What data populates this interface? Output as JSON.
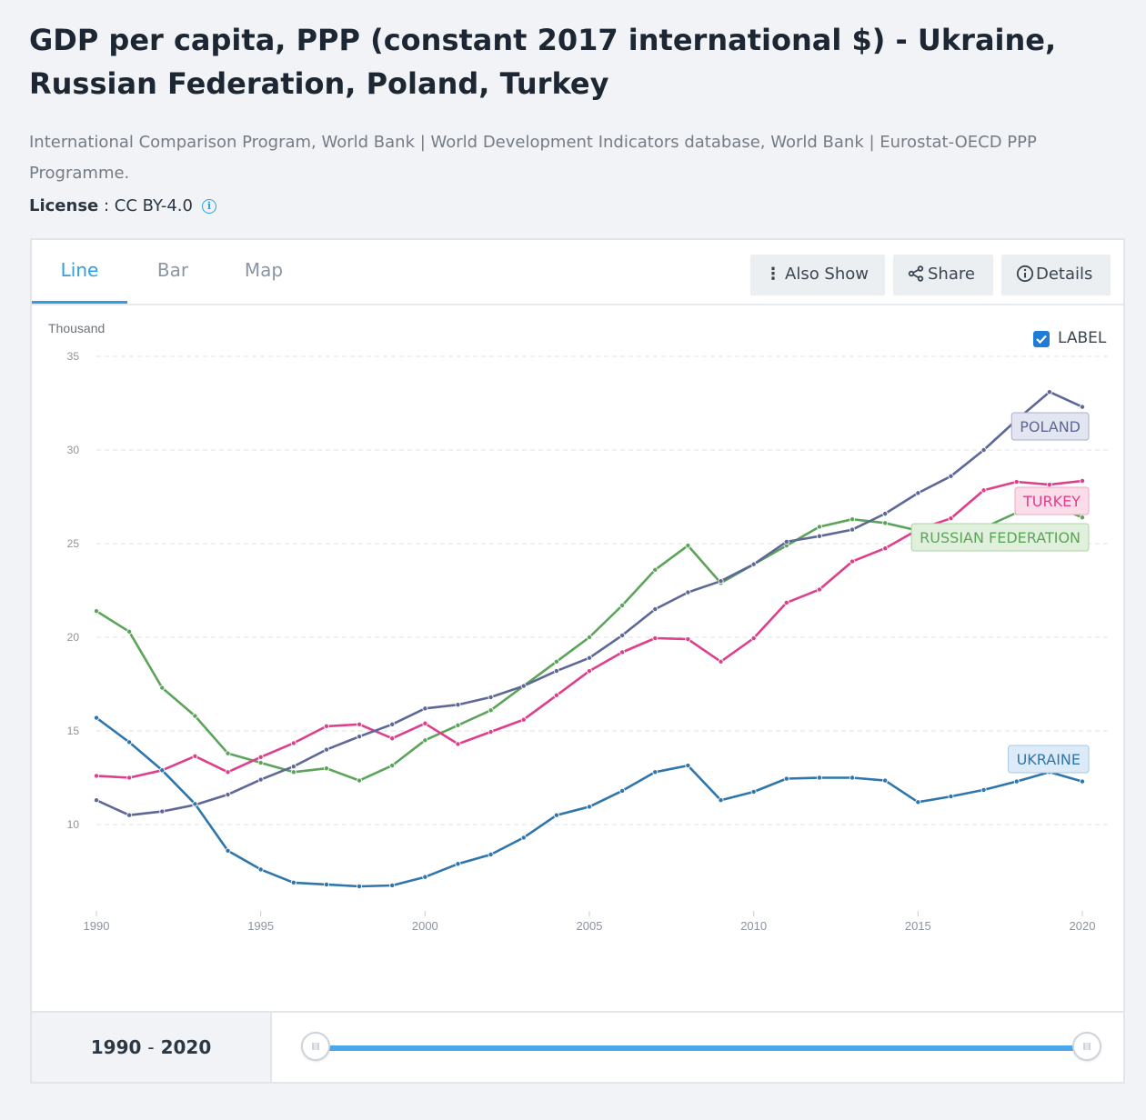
{
  "page": {
    "title": "GDP per capita, PPP (constant 2017 international $) - Ukraine, Russian Federation, Poland, Turkey",
    "source": "International Comparison Program, World Bank | World Development Indicators database, World Bank | Eurostat-OECD PPP Programme.",
    "license_label": "License",
    "license_sep": " : ",
    "license_value": "CC BY-4.0",
    "info_icon": "info-circle-icon"
  },
  "tabs": [
    {
      "label": "Line",
      "active": true
    },
    {
      "label": "Bar",
      "active": false
    },
    {
      "label": "Map",
      "active": false
    }
  ],
  "toolbar": {
    "also_show": {
      "label": "Also Show",
      "icon": "vertical-dots-icon"
    },
    "share": {
      "label": "Share",
      "icon": "share-icon"
    },
    "details": {
      "label": "Details",
      "icon": "info-circle-icon"
    }
  },
  "label_toggle": {
    "label": "LABEL",
    "checked": true
  },
  "range": {
    "start": "1990",
    "sep": "-",
    "end": "2020",
    "start_fraction": 0,
    "end_fraction": 1
  },
  "colors": {
    "accent": "#2d9fe3",
    "Ukraine": "#2e76ac",
    "Russian Federation": "#5ba45a",
    "Poland": "#5e6896",
    "Turkey": "#de3f8b"
  },
  "chart_data": {
    "type": "line",
    "unit_label": "Thousand",
    "xlabel": "",
    "ylabel": "",
    "grid": true,
    "ylim": [
      7,
      35
    ],
    "xlim": [
      1990,
      2020
    ],
    "y_ticks": [
      10,
      15,
      20,
      25,
      30,
      35
    ],
    "x_ticks": [
      1990,
      1995,
      2000,
      2005,
      2010,
      2015,
      2020
    ],
    "x": [
      1990,
      1991,
      1992,
      1993,
      1994,
      1995,
      1996,
      1997,
      1998,
      1999,
      2000,
      2001,
      2002,
      2003,
      2004,
      2005,
      2006,
      2007,
      2008,
      2009,
      2010,
      2011,
      2012,
      2013,
      2014,
      2015,
      2016,
      2017,
      2018,
      2019,
      2020
    ],
    "series": [
      {
        "name": "Ukraine",
        "label": "UKRAINE",
        "values": [
          15.7,
          14.4,
          12.9,
          11.1,
          8.6,
          7.6,
          6.9,
          6.8,
          6.7,
          6.75,
          7.2,
          7.9,
          8.4,
          9.3,
          10.5,
          10.95,
          11.8,
          12.8,
          13.15,
          11.3,
          11.75,
          12.45,
          12.5,
          12.5,
          12.35,
          11.2,
          11.5,
          11.85,
          12.3,
          12.8,
          12.3
        ]
      },
      {
        "name": "Russian Federation",
        "label": "RUSSIAN FEDERATION",
        "values": [
          21.4,
          20.3,
          17.3,
          15.8,
          13.8,
          13.3,
          12.8,
          13.0,
          12.35,
          13.15,
          14.5,
          15.3,
          16.1,
          17.4,
          18.7,
          20.0,
          21.7,
          23.6,
          24.9,
          22.9,
          23.9,
          24.9,
          25.9,
          26.3,
          26.1,
          25.7,
          25.6,
          25.85,
          26.65,
          27.1,
          26.4
        ]
      },
      {
        "name": "Poland",
        "label": "POLAND",
        "values": [
          11.3,
          10.5,
          10.7,
          11.05,
          11.6,
          12.4,
          13.1,
          14.0,
          14.7,
          15.35,
          16.2,
          16.4,
          16.8,
          17.4,
          18.2,
          18.9,
          20.1,
          21.5,
          22.4,
          23.0,
          23.9,
          25.1,
          25.4,
          25.75,
          26.6,
          27.7,
          28.6,
          30.0,
          31.6,
          33.1,
          32.3
        ]
      },
      {
        "name": "Turkey",
        "label": "TURKEY",
        "values": [
          12.6,
          12.5,
          12.9,
          13.65,
          12.8,
          13.6,
          14.35,
          15.25,
          15.35,
          14.6,
          15.4,
          14.3,
          14.95,
          15.6,
          16.9,
          18.2,
          19.2,
          19.95,
          19.9,
          18.7,
          19.95,
          21.85,
          22.55,
          24.05,
          24.75,
          25.75,
          26.35,
          27.85,
          28.3,
          28.15,
          28.35
        ]
      }
    ]
  }
}
